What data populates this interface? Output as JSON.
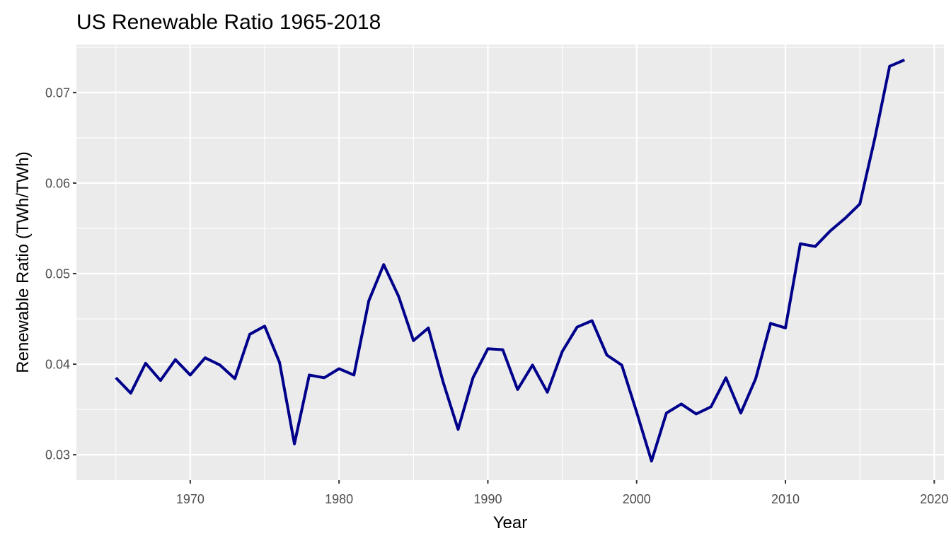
{
  "chart_data": {
    "type": "line",
    "title": "US Renewable Ratio 1965-2018",
    "xlabel": "Year",
    "ylabel": "Renewable Ratio (TWh/TWh)",
    "xlim": [
      1962.35,
      2020.65
    ],
    "ylim": [
      0.0272,
      0.0753
    ],
    "x_ticks": [
      1970,
      1980,
      1990,
      2000,
      2010,
      2020
    ],
    "x_tick_labels": [
      "1970",
      "1980",
      "1990",
      "2000",
      "2010",
      "2020"
    ],
    "y_ticks": [
      0.03,
      0.04,
      0.05,
      0.06,
      0.07
    ],
    "y_tick_labels": [
      "0.03",
      "0.04",
      "0.05",
      "0.06",
      "0.07"
    ],
    "grid": true,
    "legend": "none",
    "line_color": "#00008B",
    "panel_color": "#EBEBEB",
    "grid_color": "#FFFFFF",
    "series": [
      {
        "x": [
          1965,
          1966,
          1967,
          1968,
          1969,
          1970,
          1971,
          1972,
          1973,
          1974,
          1975,
          1976,
          1977,
          1978,
          1979,
          1980,
          1981,
          1982,
          1983,
          1984,
          1985,
          1986,
          1987,
          1988,
          1989,
          1990,
          1991,
          1992,
          1993,
          1994,
          1995,
          1996,
          1997,
          1998,
          1999,
          2000,
          2001,
          2002,
          2003,
          2004,
          2005,
          2006,
          2007,
          2008,
          2009,
          2010,
          2011,
          2012,
          2013,
          2014,
          2015,
          2016,
          2017,
          2018
        ],
        "values": [
          0.0385,
          0.0368,
          0.0401,
          0.0382,
          0.0405,
          0.0388,
          0.0407,
          0.0399,
          0.0384,
          0.0433,
          0.0442,
          0.0402,
          0.0312,
          0.0388,
          0.0385,
          0.0395,
          0.0388,
          0.047,
          0.051,
          0.0475,
          0.0426,
          0.044,
          0.038,
          0.0328,
          0.0385,
          0.0417,
          0.0416,
          0.0372,
          0.0399,
          0.0369,
          0.0414,
          0.0441,
          0.0448,
          0.041,
          0.0399,
          0.0347,
          0.0293,
          0.0346,
          0.0356,
          0.0345,
          0.0353,
          0.0385,
          0.0346,
          0.0384,
          0.0445,
          0.044,
          0.0533,
          0.053,
          0.0547,
          0.0561,
          0.0577,
          0.0649,
          0.0729,
          0.0736
        ]
      }
    ]
  }
}
